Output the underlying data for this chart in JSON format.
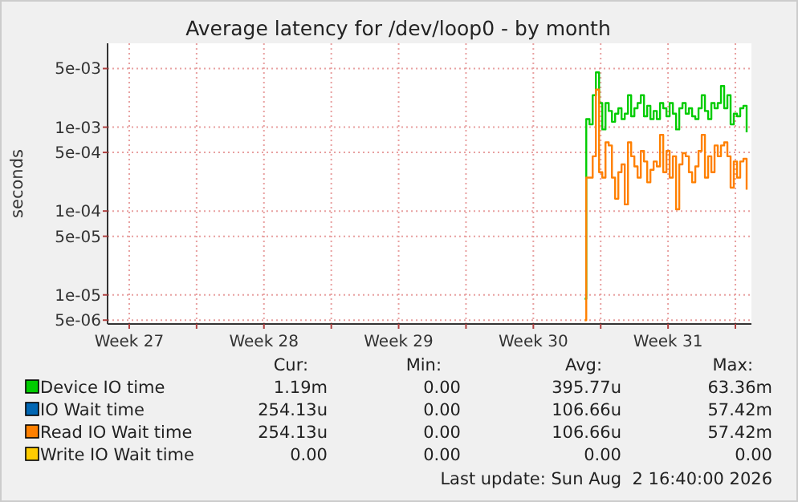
{
  "chart_data": {
    "type": "step",
    "title": "Average latency for /dev/loop0 - by month",
    "ylabel": "seconds",
    "log": true,
    "grid": true,
    "legend": "bottom",
    "xlim": [
      "2026-07-01T09:00",
      "2026-08-03T20:00"
    ],
    "xticks": [
      {
        "value": "2026-07-02T12:00",
        "label": "Week 27"
      },
      {
        "value": "2026-07-06T00:00",
        "label": null
      },
      {
        "value": "2026-07-09T12:00",
        "label": "Week 28"
      },
      {
        "value": "2026-07-13T00:00",
        "label": null
      },
      {
        "value": "2026-07-16T12:00",
        "label": "Week 29"
      },
      {
        "value": "2026-07-20T00:00",
        "label": null
      },
      {
        "value": "2026-07-23T12:00",
        "label": "Week 30"
      },
      {
        "value": "2026-07-27T00:00",
        "label": null
      },
      {
        "value": "2026-07-30T12:00",
        "label": "Week 31"
      },
      {
        "value": "2026-08-03T00:00",
        "label": null
      }
    ],
    "ylim": [
      4.5e-06,
      0.01
    ],
    "yticks": [
      {
        "value": 5e-06,
        "label": "5e-06"
      },
      {
        "value": 1e-05,
        "label": "1e-05"
      },
      {
        "value": 5e-05,
        "label": "5e-05"
      },
      {
        "value": 0.0001,
        "label": "1e-04"
      },
      {
        "value": 0.0005,
        "label": "5e-04"
      },
      {
        "value": 0.001,
        "label": "1e-03"
      },
      {
        "value": 0.005,
        "label": "5e-03"
      }
    ],
    "x": [
      "2026-07-26T04:00",
      "2026-07-26T06:00",
      "2026-07-26T10:00",
      "2026-07-26T14:00",
      "2026-07-26T18:00",
      "2026-07-26T22:00",
      "2026-07-27T02:00",
      "2026-07-27T06:00",
      "2026-07-27T10:00",
      "2026-07-27T14:00",
      "2026-07-27T18:00",
      "2026-07-27T22:00",
      "2026-07-28T02:00",
      "2026-07-28T06:00",
      "2026-07-28T10:00",
      "2026-07-28T14:00",
      "2026-07-28T18:00",
      "2026-07-28T22:00",
      "2026-07-29T02:00",
      "2026-07-29T06:00",
      "2026-07-29T10:00",
      "2026-07-29T14:00",
      "2026-07-29T18:00",
      "2026-07-29T22:00",
      "2026-07-30T02:00",
      "2026-07-30T06:00",
      "2026-07-30T10:00",
      "2026-07-30T14:00",
      "2026-07-30T18:00",
      "2026-07-30T22:00",
      "2026-07-31T02:00",
      "2026-07-31T06:00",
      "2026-07-31T10:00",
      "2026-07-31T14:00",
      "2026-07-31T18:00",
      "2026-07-31T22:00",
      "2026-08-01T02:00",
      "2026-08-01T06:00",
      "2026-08-01T10:00",
      "2026-08-01T14:00",
      "2026-08-01T18:00",
      "2026-08-01T22:00",
      "2026-08-02T02:00",
      "2026-08-02T06:00",
      "2026-08-02T10:00",
      "2026-08-02T14:00",
      "2026-08-02T18:00",
      "2026-08-02T22:00",
      "2026-08-03T02:00",
      "2026-08-03T06:00",
      "2026-08-03T10:00",
      "2026-08-03T14:00"
    ],
    "series": [
      {
        "name": "Device IO time",
        "color": "#00cc00",
        "values": [
          9e-06,
          0.00125,
          0.00108,
          0.0024,
          0.0045,
          0.00194,
          0.00094,
          0.00194,
          0.00156,
          0.00116,
          0.00145,
          0.00168,
          0.00125,
          0.00145,
          0.0024,
          0.00135,
          0.00168,
          0.00194,
          0.0024,
          0.00135,
          0.0018,
          0.00125,
          0.00156,
          0.00125,
          0.00194,
          0.00168,
          0.00135,
          0.00194,
          0.00145,
          0.00094,
          0.00168,
          0.00194,
          0.00145,
          0.00168,
          0.00135,
          0.00125,
          0.00168,
          0.0024,
          0.00156,
          0.00125,
          0.00194,
          0.00168,
          0.00194,
          0.0031,
          0.00168,
          0.0024,
          0.00108,
          0.00145,
          0.00135,
          0.00168,
          0.0018,
          0.00087
        ]
      },
      {
        "name": "IO Wait time",
        "color": "#0066b3",
        "values": [
          null,
          null,
          null,
          null,
          null,
          null,
          null,
          null,
          null,
          null,
          null,
          null,
          null,
          null,
          null,
          null,
          null,
          null,
          null,
          null,
          null,
          null,
          null,
          null,
          null,
          null,
          null,
          null,
          null,
          null,
          null,
          null,
          null,
          null,
          null,
          null,
          null,
          null,
          null,
          null,
          null,
          null,
          null,
          null,
          null,
          null,
          null,
          null,
          null,
          null,
          null,
          null
        ]
      },
      {
        "name": "Read IO Wait time",
        "color": "#ff8000",
        "values": [
          5e-06,
          0.00025,
          0.00025,
          0.00045,
          0.0028,
          0.00029,
          0.00025,
          0.00066,
          0.000605,
          0.00025,
          0.00014,
          0.00029,
          0.00036,
          0.00012,
          0.00066,
          0.00045,
          0.00034,
          0.00025,
          0.00052,
          0.00039,
          0.00022,
          0.00031,
          0.00039,
          0.00034,
          0.00081,
          0.00029,
          0.00052,
          0.00025,
          0.00045,
          0.000105,
          0.00036,
          0.00049,
          0.00045,
          0.00029,
          0.00022,
          0.00034,
          0.00052,
          0.00081,
          0.00025,
          0.00045,
          0.00029,
          0.000605,
          0.00045,
          0.000605,
          0.00066,
          0.00045,
          0.00019,
          0.00039,
          0.00025,
          0.00039,
          0.00042,
          0.00018
        ]
      },
      {
        "name": "Write IO Wait time",
        "color": "#ffcc00",
        "values": [
          null,
          null,
          null,
          null,
          null,
          null,
          null,
          null,
          null,
          null,
          null,
          null,
          null,
          null,
          null,
          null,
          null,
          null,
          null,
          null,
          null,
          null,
          null,
          null,
          null,
          null,
          null,
          null,
          null,
          null,
          null,
          null,
          null,
          null,
          null,
          null,
          null,
          null,
          null,
          null,
          null,
          null,
          null,
          null,
          null,
          null,
          null,
          null,
          null,
          null,
          null,
          null
        ]
      }
    ],
    "annotations": [
      "Cur:",
      "Min:",
      "Avg:",
      "Max:",
      "1.19m",
      "0.00",
      "395.77u",
      "63.36m",
      "254.13u",
      "0.00",
      "106.66u",
      "57.42m",
      "254.13u",
      "0.00",
      "106.66u",
      "57.42m",
      "0.00",
      "0.00",
      "0.00",
      "0.00",
      "Last update: Sun Aug  2 16:40:00 2026"
    ]
  }
}
